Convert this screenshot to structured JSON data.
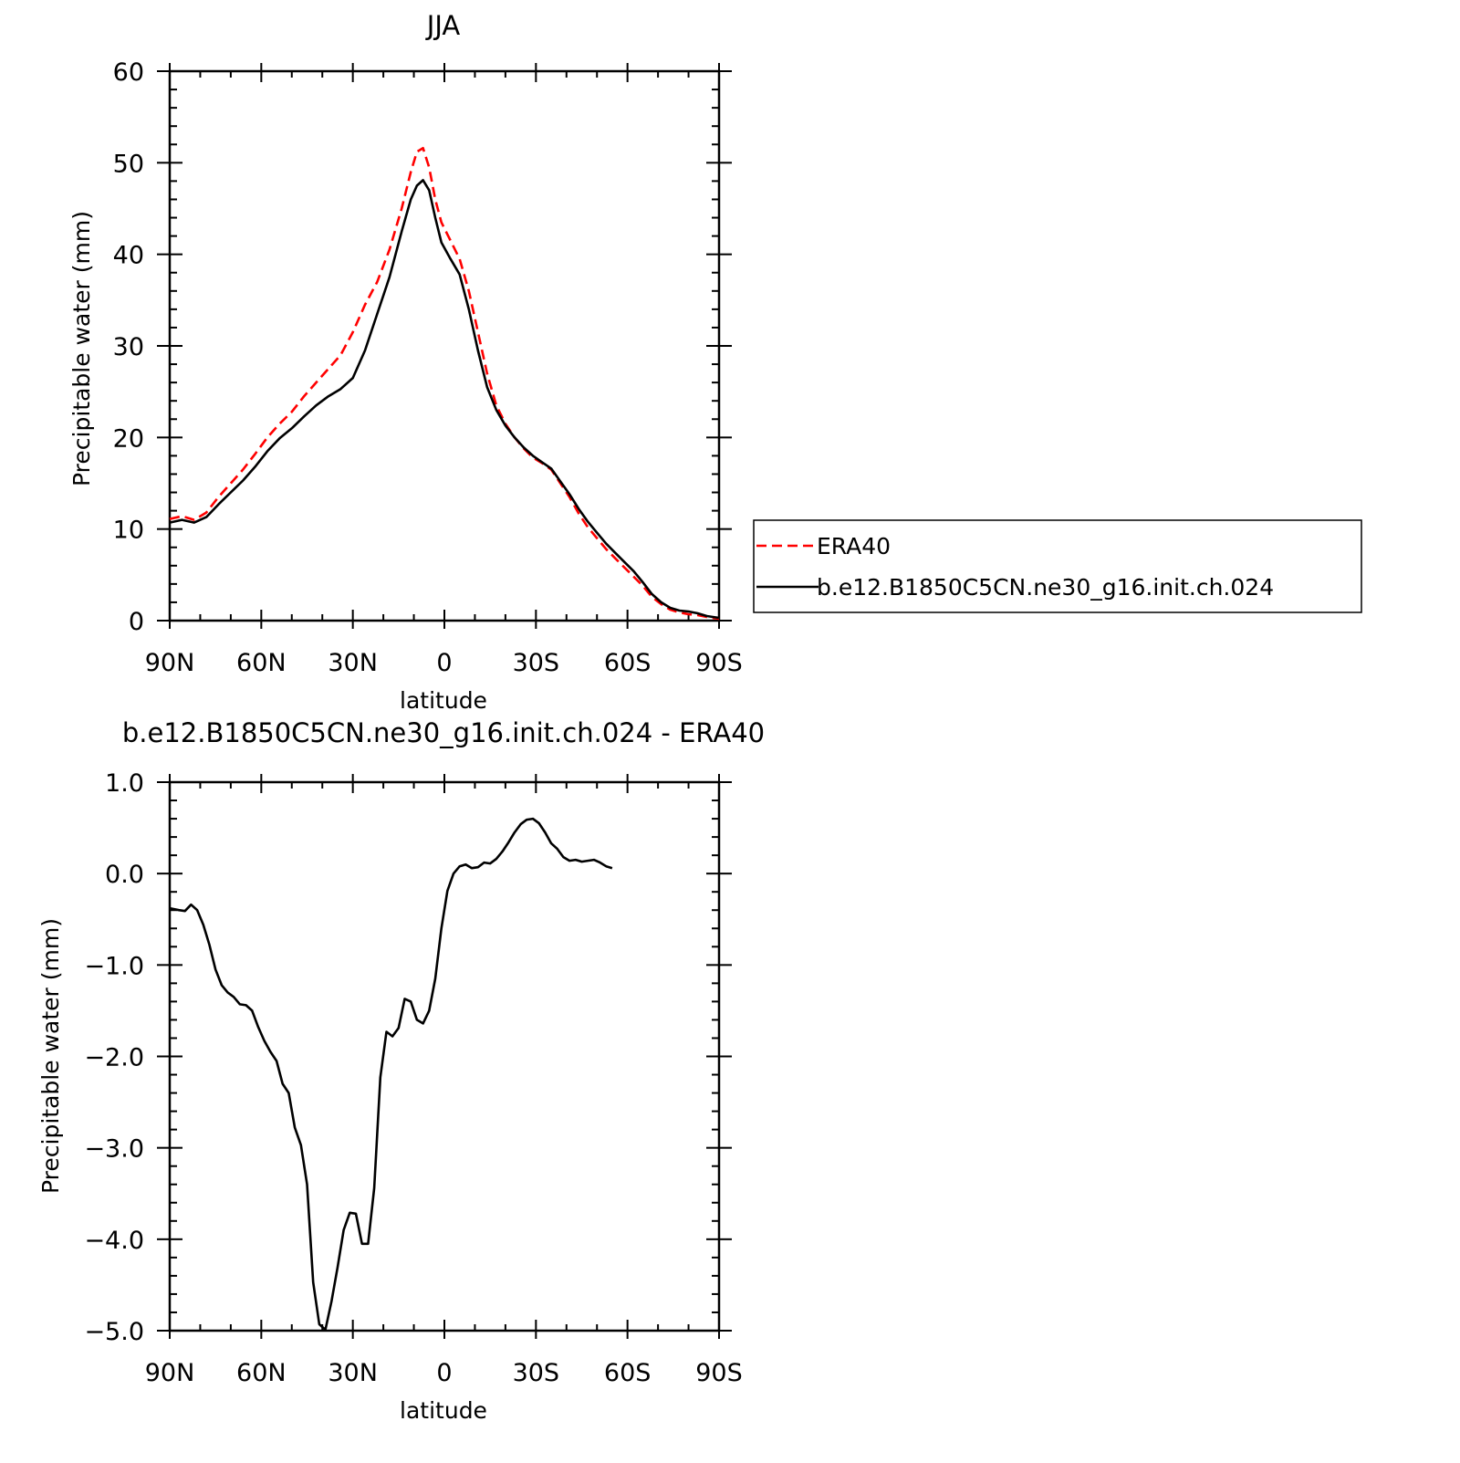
{
  "chart_data": [
    {
      "type": "line",
      "title": "JJA",
      "xlabel": "latitude",
      "ylabel": "Precipitable water (mm)",
      "xlim": [
        -90,
        90
      ],
      "ylim": [
        0,
        60
      ],
      "x_axis_note": "x in degrees: negative = N, positive = S",
      "xticks": [
        -90,
        -60,
        -30,
        0,
        30,
        60,
        90
      ],
      "xtick_labels": [
        "90N",
        "60N",
        "30N",
        "0",
        "30S",
        "60S",
        "90S"
      ],
      "yticks": [
        0,
        10,
        20,
        30,
        40,
        50,
        60
      ],
      "ytick_labels": [
        "0",
        "10",
        "20",
        "30",
        "40",
        "50",
        "60"
      ],
      "legend_position": "right",
      "series": [
        {
          "name": "ERA40",
          "color": "#ff0000",
          "dash": "dashed",
          "points": [
            [
              -90,
              11.1
            ],
            [
              -86,
              11.4
            ],
            [
              -82,
              11.0
            ],
            [
              -78,
              11.8
            ],
            [
              -74,
              13.5
            ],
            [
              -70,
              15.0
            ],
            [
              -66,
              16.5
            ],
            [
              -62,
              18.2
            ],
            [
              -58,
              20.0
            ],
            [
              -54,
              21.5
            ],
            [
              -50,
              22.8
            ],
            [
              -46,
              24.5
            ],
            [
              -42,
              26.0
            ],
            [
              -38,
              27.5
            ],
            [
              -34,
              29.0
            ],
            [
              -30,
              31.5
            ],
            [
              -26,
              34.5
            ],
            [
              -22,
              37.0
            ],
            [
              -18,
              40.5
            ],
            [
              -14,
              45.0
            ],
            [
              -11,
              49.0
            ],
            [
              -9,
              51.2
            ],
            [
              -7,
              51.6
            ],
            [
              -5,
              49.5
            ],
            [
              -3,
              46.0
            ],
            [
              -1,
              43.5
            ],
            [
              2,
              41.5
            ],
            [
              5,
              39.5
            ],
            [
              8,
              36.0
            ],
            [
              11,
              31.5
            ],
            [
              14,
              27.0
            ],
            [
              17,
              23.5
            ],
            [
              20,
              21.5
            ],
            [
              23,
              20.0
            ],
            [
              26,
              18.8
            ],
            [
              29,
              17.8
            ],
            [
              32,
              17.2
            ],
            [
              35,
              16.5
            ],
            [
              38,
              15.0
            ],
            [
              41,
              13.5
            ],
            [
              44,
              11.7
            ],
            [
              47,
              10.2
            ],
            [
              50,
              9.0
            ],
            [
              53,
              7.8
            ],
            [
              56,
              6.8
            ],
            [
              59,
              5.8
            ],
            [
              62,
              4.8
            ],
            [
              65,
              3.8
            ],
            [
              68,
              2.6
            ],
            [
              71,
              1.8
            ],
            [
              74,
              1.2
            ],
            [
              77,
              0.9
            ],
            [
              80,
              0.7
            ],
            [
              83,
              0.6
            ],
            [
              86,
              0.4
            ],
            [
              90,
              0.2
            ]
          ]
        },
        {
          "name": "b.e12.B1850C5CN.ne30_g16.init.ch.024",
          "color": "#000000",
          "dash": "solid",
          "points": [
            [
              -90,
              10.7
            ],
            [
              -86,
              11.0
            ],
            [
              -82,
              10.7
            ],
            [
              -78,
              11.3
            ],
            [
              -74,
              12.7
            ],
            [
              -70,
              14.0
            ],
            [
              -66,
              15.3
            ],
            [
              -62,
              16.8
            ],
            [
              -58,
              18.5
            ],
            [
              -54,
              19.9
            ],
            [
              -50,
              21.0
            ],
            [
              -46,
              22.3
            ],
            [
              -42,
              23.5
            ],
            [
              -38,
              24.5
            ],
            [
              -34,
              25.3
            ],
            [
              -30,
              26.5
            ],
            [
              -26,
              29.5
            ],
            [
              -22,
              33.5
            ],
            [
              -18,
              37.5
            ],
            [
              -14,
              42.5
            ],
            [
              -11,
              46.0
            ],
            [
              -9,
              47.5
            ],
            [
              -7,
              48.1
            ],
            [
              -5,
              47.0
            ],
            [
              -3,
              44.0
            ],
            [
              -1,
              41.3
            ],
            [
              2,
              39.5
            ],
            [
              5,
              37.8
            ],
            [
              8,
              34.0
            ],
            [
              11,
              29.5
            ],
            [
              14,
              25.5
            ],
            [
              17,
              23.0
            ],
            [
              20,
              21.3
            ],
            [
              23,
              20.0
            ],
            [
              26,
              18.9
            ],
            [
              29,
              18.0
            ],
            [
              32,
              17.3
            ],
            [
              35,
              16.6
            ],
            [
              38,
              15.2
            ],
            [
              41,
              13.8
            ],
            [
              44,
              12.2
            ],
            [
              47,
              10.8
            ],
            [
              50,
              9.6
            ],
            [
              53,
              8.4
            ],
            [
              56,
              7.4
            ],
            [
              59,
              6.4
            ],
            [
              62,
              5.4
            ],
            [
              65,
              4.2
            ],
            [
              68,
              2.9
            ],
            [
              71,
              2.0
            ],
            [
              74,
              1.4
            ],
            [
              77,
              1.1
            ],
            [
              80,
              1.0
            ],
            [
              83,
              0.8
            ],
            [
              86,
              0.5
            ],
            [
              90,
              0.3
            ]
          ]
        }
      ]
    },
    {
      "type": "line",
      "title": "b.e12.B1850C5CN.ne30_g16.init.ch.024 - ERA40",
      "xlabel": "latitude",
      "ylabel": "Precipitable water (mm)",
      "xlim": [
        -90,
        90
      ],
      "ylim": [
        -5.0,
        1.0
      ],
      "xticks": [
        -90,
        -60,
        -30,
        0,
        30,
        60,
        90
      ],
      "xtick_labels": [
        "90N",
        "60N",
        "30N",
        "0",
        "30S",
        "60S",
        "90S"
      ],
      "yticks": [
        -5,
        -4,
        -3,
        -2,
        -1,
        0,
        1
      ],
      "ytick_labels": [
        "-5.0",
        "-4.0",
        "-3.0",
        "-2.0",
        "-1.0",
        "0.0",
        "1.0"
      ],
      "series": [
        {
          "name": "",
          "color": "#000000",
          "dash": "solid",
          "points": [
            [
              -90,
              -0.38
            ],
            [
              -87,
              -0.4
            ],
            [
              -85,
              -0.41
            ],
            [
              -83,
              -0.34
            ],
            [
              -81,
              -0.4
            ],
            [
              -79,
              -0.56
            ],
            [
              -77,
              -0.78
            ],
            [
              -75,
              -1.05
            ],
            [
              -73,
              -1.22
            ],
            [
              -71,
              -1.3
            ],
            [
              -69,
              -1.35
            ],
            [
              -67,
              -1.43
            ],
            [
              -65,
              -1.44
            ],
            [
              -63,
              -1.5
            ],
            [
              -61,
              -1.68
            ],
            [
              -59,
              -1.83
            ],
            [
              -57,
              -1.95
            ],
            [
              -55,
              -2.05
            ],
            [
              -53,
              -2.3
            ],
            [
              -51,
              -2.4
            ],
            [
              -49,
              -2.78
            ],
            [
              -47,
              -2.97
            ],
            [
              -45,
              -3.4
            ],
            [
              -43,
              -4.47
            ],
            [
              -41,
              -4.93
            ],
            [
              -39,
              -4.99
            ],
            [
              -37,
              -4.68
            ],
            [
              -35,
              -4.31
            ],
            [
              -33,
              -3.9
            ],
            [
              -31,
              -3.71
            ],
            [
              -29,
              -3.72
            ],
            [
              -27,
              -4.05
            ],
            [
              -25,
              -4.05
            ],
            [
              -23,
              -3.44
            ],
            [
              -21,
              -2.23
            ],
            [
              -19,
              -1.73
            ],
            [
              -17,
              -1.78
            ],
            [
              -15,
              -1.69
            ],
            [
              -13,
              -1.37
            ],
            [
              -11,
              -1.4
            ],
            [
              -9,
              -1.6
            ],
            [
              -7,
              -1.64
            ],
            [
              -5,
              -1.5
            ],
            [
              -3,
              -1.15
            ],
            [
              -1,
              -0.6
            ],
            [
              1,
              -0.19
            ],
            [
              3,
              0.0
            ],
            [
              5,
              0.08
            ],
            [
              7,
              0.1
            ],
            [
              9,
              0.06
            ],
            [
              11,
              0.07
            ],
            [
              13,
              0.12
            ],
            [
              15,
              0.11
            ],
            [
              17,
              0.16
            ],
            [
              19,
              0.24
            ],
            [
              21,
              0.34
            ],
            [
              23,
              0.45
            ],
            [
              25,
              0.54
            ],
            [
              27,
              0.59
            ],
            [
              29,
              0.6
            ],
            [
              31,
              0.55
            ],
            [
              33,
              0.45
            ],
            [
              35,
              0.33
            ],
            [
              37,
              0.27
            ],
            [
              39,
              0.18
            ],
            [
              41,
              0.14
            ],
            [
              43,
              0.15
            ],
            [
              45,
              0.13
            ],
            [
              47,
              0.14
            ],
            [
              49,
              0.15
            ],
            [
              51,
              0.12
            ],
            [
              53,
              0.08
            ],
            [
              55,
              0.06
            ]
          ]
        }
      ]
    }
  ]
}
